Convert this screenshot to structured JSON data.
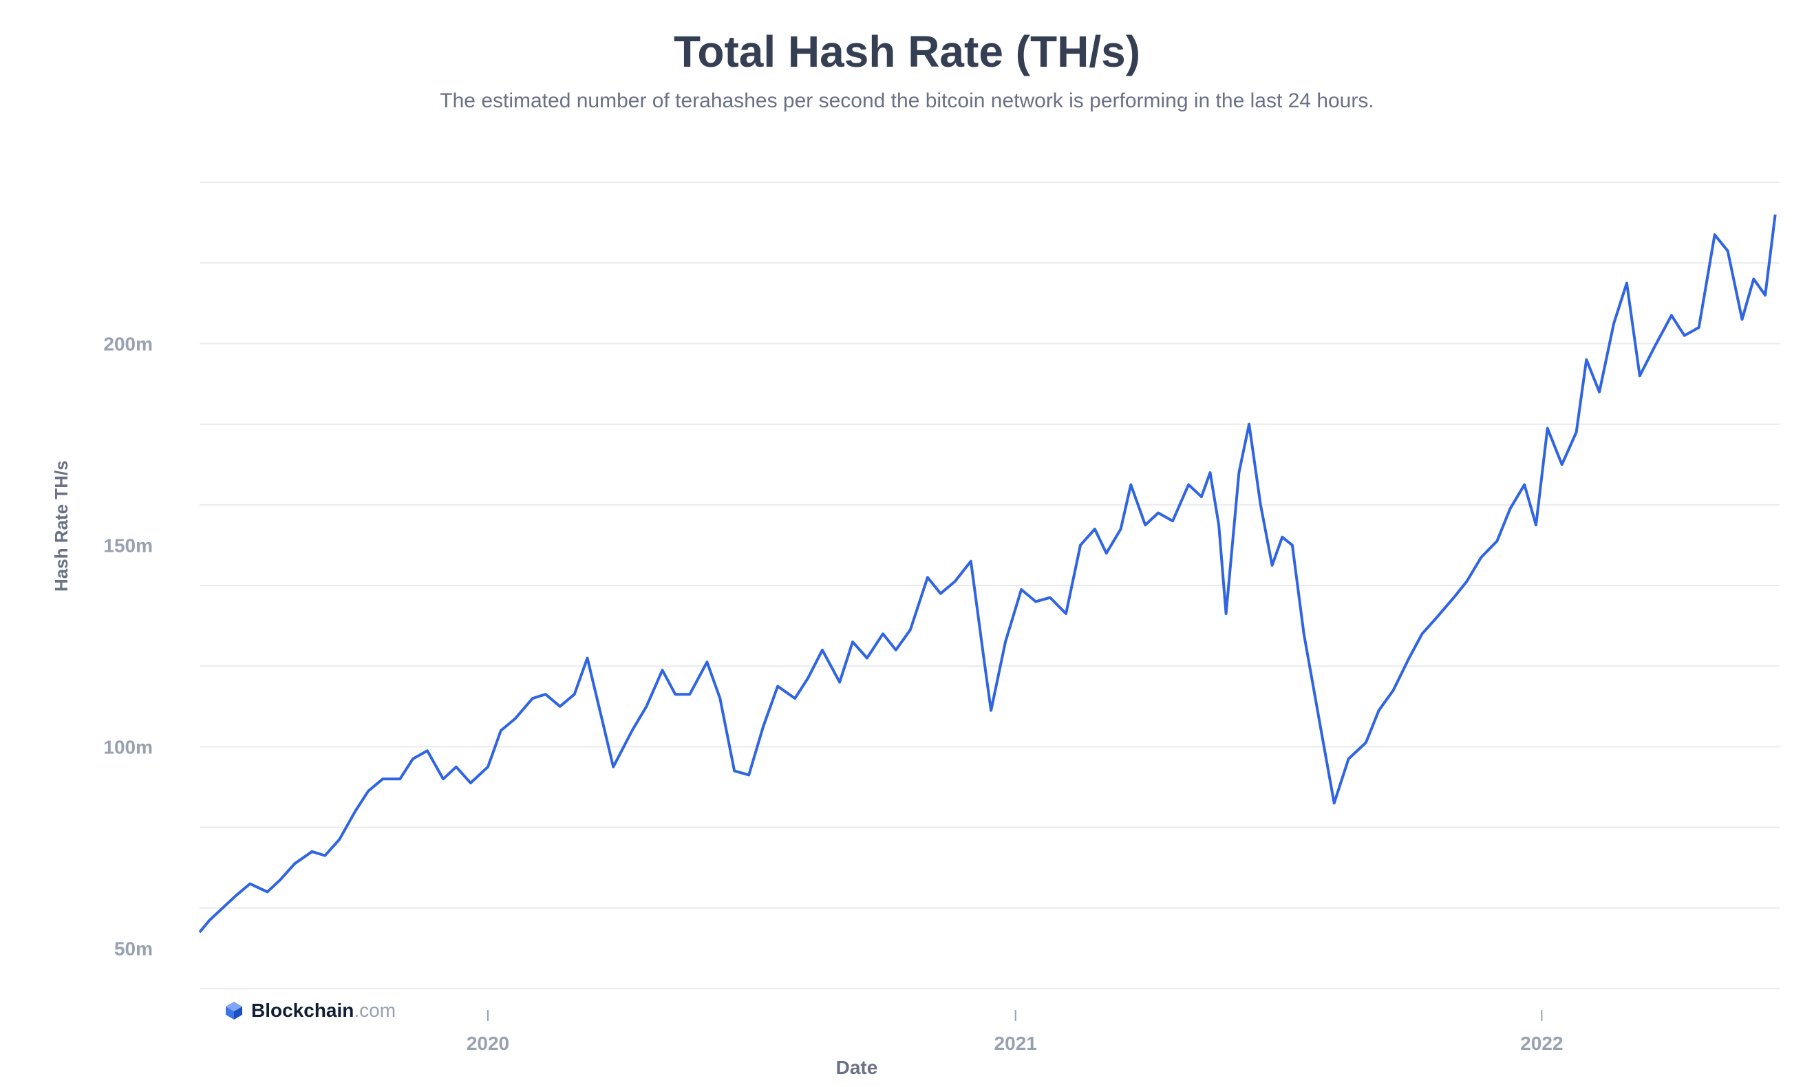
{
  "chart_data": {
    "type": "line",
    "title": "Total Hash Rate (TH/s)",
    "subtitle": "The estimated number of terahashes per second the bitcoin network is performing in the last 24 hours.",
    "xlabel": "Date",
    "ylabel": "Hash Rate TH/s",
    "y_ticks": [
      {
        "value": 50000000,
        "label": "50m"
      },
      {
        "value": 100000000,
        "label": "100m"
      },
      {
        "value": 150000000,
        "label": "150m"
      },
      {
        "value": 200000000,
        "label": "200m"
      }
    ],
    "x_ticks": [
      {
        "value": "2020-01-01",
        "label": "2020"
      },
      {
        "value": "2021-01-01",
        "label": "2021"
      },
      {
        "value": "2022-01-01",
        "label": "2022"
      }
    ],
    "xlim": [
      "2019-06-15",
      "2022-06-15"
    ],
    "ylim": [
      40000000,
      240000000
    ],
    "grid": true,
    "line_color": "#2f64e3",
    "series": [
      {
        "values": [
          [
            "2019-06-15",
            54000000
          ],
          [
            "2019-06-22",
            57000000
          ],
          [
            "2019-07-01",
            60000000
          ],
          [
            "2019-07-10",
            63000000
          ],
          [
            "2019-07-20",
            66000000
          ],
          [
            "2019-08-01",
            64000000
          ],
          [
            "2019-08-10",
            67000000
          ],
          [
            "2019-08-20",
            71000000
          ],
          [
            "2019-09-01",
            74000000
          ],
          [
            "2019-09-10",
            73000000
          ],
          [
            "2019-09-20",
            77000000
          ],
          [
            "2019-10-01",
            84000000
          ],
          [
            "2019-10-10",
            89000000
          ],
          [
            "2019-10-20",
            92000000
          ],
          [
            "2019-11-01",
            92000000
          ],
          [
            "2019-11-10",
            97000000
          ],
          [
            "2019-11-20",
            99000000
          ],
          [
            "2019-12-01",
            92000000
          ],
          [
            "2019-12-10",
            95000000
          ],
          [
            "2019-12-20",
            91000000
          ],
          [
            "2020-01-01",
            95000000
          ],
          [
            "2020-01-10",
            104000000
          ],
          [
            "2020-01-20",
            107000000
          ],
          [
            "2020-02-01",
            112000000
          ],
          [
            "2020-02-10",
            113000000
          ],
          [
            "2020-02-20",
            110000000
          ],
          [
            "2020-03-01",
            113000000
          ],
          [
            "2020-03-10",
            122000000
          ],
          [
            "2020-03-20",
            107000000
          ],
          [
            "2020-03-28",
            95000000
          ],
          [
            "2020-04-10",
            104000000
          ],
          [
            "2020-04-20",
            110000000
          ],
          [
            "2020-05-01",
            119000000
          ],
          [
            "2020-05-10",
            113000000
          ],
          [
            "2020-05-20",
            113000000
          ],
          [
            "2020-06-01",
            121000000
          ],
          [
            "2020-06-10",
            112000000
          ],
          [
            "2020-06-20",
            94000000
          ],
          [
            "2020-06-30",
            93000000
          ],
          [
            "2020-07-10",
            105000000
          ],
          [
            "2020-07-20",
            115000000
          ],
          [
            "2020-08-01",
            112000000
          ],
          [
            "2020-08-10",
            117000000
          ],
          [
            "2020-08-20",
            124000000
          ],
          [
            "2020-09-01",
            116000000
          ],
          [
            "2020-09-10",
            126000000
          ],
          [
            "2020-09-20",
            122000000
          ],
          [
            "2020-10-01",
            128000000
          ],
          [
            "2020-10-10",
            124000000
          ],
          [
            "2020-10-20",
            129000000
          ],
          [
            "2020-11-01",
            142000000
          ],
          [
            "2020-11-10",
            138000000
          ],
          [
            "2020-11-20",
            141000000
          ],
          [
            "2020-12-01",
            146000000
          ],
          [
            "2020-12-10",
            122000000
          ],
          [
            "2020-12-15",
            109000000
          ],
          [
            "2020-12-25",
            126000000
          ],
          [
            "2021-01-05",
            139000000
          ],
          [
            "2021-01-15",
            136000000
          ],
          [
            "2021-01-25",
            137000000
          ],
          [
            "2021-02-05",
            133000000
          ],
          [
            "2021-02-15",
            150000000
          ],
          [
            "2021-02-25",
            154000000
          ],
          [
            "2021-03-05",
            148000000
          ],
          [
            "2021-03-15",
            154000000
          ],
          [
            "2021-03-22",
            165000000
          ],
          [
            "2021-04-01",
            155000000
          ],
          [
            "2021-04-10",
            158000000
          ],
          [
            "2021-04-20",
            156000000
          ],
          [
            "2021-05-01",
            165000000
          ],
          [
            "2021-05-10",
            162000000
          ],
          [
            "2021-05-16",
            168000000
          ],
          [
            "2021-05-22",
            155000000
          ],
          [
            "2021-05-27",
            133000000
          ],
          [
            "2021-06-05",
            168000000
          ],
          [
            "2021-06-12",
            180000000
          ],
          [
            "2021-06-20",
            160000000
          ],
          [
            "2021-06-28",
            145000000
          ],
          [
            "2021-07-05",
            152000000
          ],
          [
            "2021-07-12",
            150000000
          ],
          [
            "2021-07-20",
            128000000
          ],
          [
            "2021-08-01",
            104000000
          ],
          [
            "2021-08-10",
            86000000
          ],
          [
            "2021-08-20",
            97000000
          ],
          [
            "2021-09-01",
            101000000
          ],
          [
            "2021-09-10",
            109000000
          ],
          [
            "2021-09-20",
            114000000
          ],
          [
            "2021-10-01",
            122000000
          ],
          [
            "2021-10-10",
            128000000
          ],
          [
            "2021-10-20",
            132000000
          ],
          [
            "2021-11-01",
            137000000
          ],
          [
            "2021-11-10",
            141000000
          ],
          [
            "2021-11-20",
            147000000
          ],
          [
            "2021-12-01",
            151000000
          ],
          [
            "2021-12-10",
            159000000
          ],
          [
            "2021-12-20",
            165000000
          ],
          [
            "2021-12-28",
            155000000
          ],
          [
            "2022-01-05",
            179000000
          ],
          [
            "2022-01-15",
            170000000
          ],
          [
            "2022-01-25",
            178000000
          ],
          [
            "2022-02-01",
            196000000
          ],
          [
            "2022-02-10",
            188000000
          ],
          [
            "2022-02-20",
            205000000
          ],
          [
            "2022-03-01",
            215000000
          ],
          [
            "2022-03-10",
            192000000
          ],
          [
            "2022-03-20",
            199000000
          ],
          [
            "2022-04-01",
            207000000
          ],
          [
            "2022-04-10",
            202000000
          ],
          [
            "2022-04-20",
            204000000
          ],
          [
            "2022-05-01",
            227000000
          ],
          [
            "2022-05-10",
            223000000
          ],
          [
            "2022-05-20",
            206000000
          ],
          [
            "2022-05-28",
            216000000
          ],
          [
            "2022-06-05",
            212000000
          ],
          [
            "2022-06-12",
            232000000
          ]
        ]
      }
    ]
  },
  "logo": {
    "brand": "Blockchain",
    "domain": ".com"
  }
}
